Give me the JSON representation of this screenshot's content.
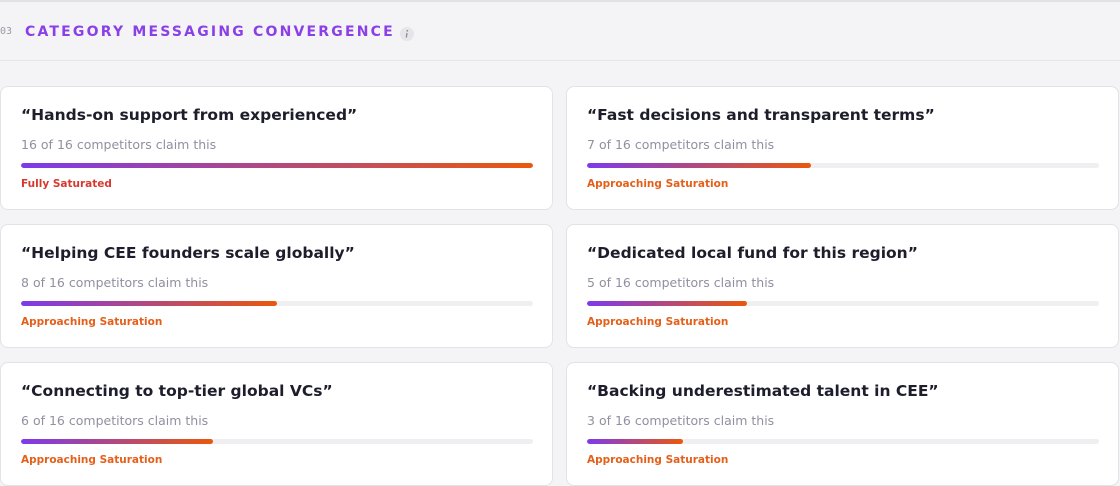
{
  "section": {
    "number": "03",
    "title": "CATEGORY MESSAGING CONVERGENCE"
  },
  "claim_words": {
    "between": "of",
    "after": "competitors claim this"
  },
  "cards": [
    {
      "quote": "“Hands-on support from experienced”",
      "claimed": 16,
      "total": 16,
      "status": "Fully Saturated",
      "status_color": "#d63a2f"
    },
    {
      "quote": "“Fast decisions and transparent terms”",
      "claimed": 7,
      "total": 16,
      "status": "Approaching Saturation",
      "status_color": "#e4601a"
    },
    {
      "quote": "“Helping CEE founders scale globally”",
      "claimed": 8,
      "total": 16,
      "status": "Approaching Saturation",
      "status_color": "#e4601a"
    },
    {
      "quote": "“Dedicated local fund for this region”",
      "claimed": 5,
      "total": 16,
      "status": "Approaching Saturation",
      "status_color": "#e4601a"
    },
    {
      "quote": "“Connecting to top-tier global VCs”",
      "claimed": 6,
      "total": 16,
      "status": "Approaching Saturation",
      "status_color": "#e4601a"
    },
    {
      "quote": "“Backing underestimated talent in CEE”",
      "claimed": 3,
      "total": 16,
      "status": "Approaching Saturation",
      "status_color": "#e4601a"
    }
  ]
}
